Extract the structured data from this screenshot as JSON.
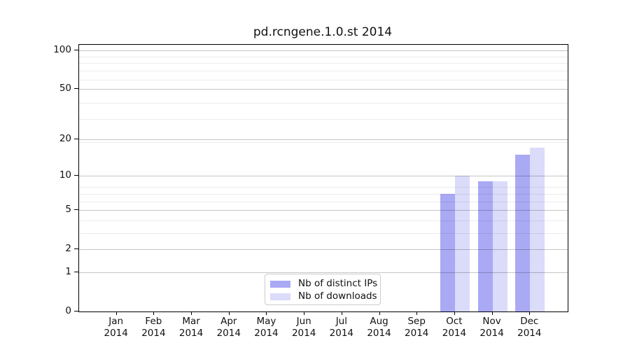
{
  "chart_data": {
    "type": "bar",
    "title": "pd.rcngene.1.0.st 2014",
    "categories": [
      "Jan",
      "Feb",
      "Mar",
      "Apr",
      "May",
      "Jun",
      "Jul",
      "Aug",
      "Sep",
      "Oct",
      "Nov",
      "Dec"
    ],
    "x_year_line": "2014",
    "series": [
      {
        "name": "Nb of distinct IPs",
        "color": "#a9a9f4",
        "values": [
          0,
          0,
          0,
          0,
          0,
          0,
          0,
          0,
          0,
          7,
          9,
          15
        ]
      },
      {
        "name": "Nb of downloads",
        "color": "#dbdbfa",
        "values": [
          0,
          0,
          0,
          0,
          0,
          0,
          0,
          0,
          0,
          10,
          9,
          17
        ]
      }
    ],
    "y_scale": "log10(value+1)",
    "y_axis": {
      "major_ticks": [
        0,
        1,
        2,
        5,
        10,
        20,
        50,
        100
      ],
      "minor_gridlines": [
        3,
        4,
        6,
        7,
        8,
        19,
        29,
        39,
        59,
        69,
        79,
        89
      ],
      "max": 110
    },
    "grid": true,
    "legend_position": "bottom-center",
    "colors": {
      "grid_major": "#c6c6c6",
      "grid_minor": "#ececec",
      "spine": "#000000",
      "text": "#111111",
      "background": "#ffffff"
    }
  }
}
